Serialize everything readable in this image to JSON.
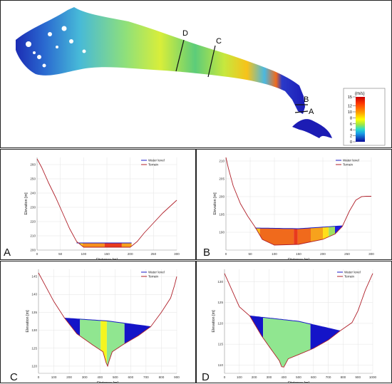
{
  "map": {
    "section_labels": [
      "D",
      "C",
      "B",
      "A"
    ],
    "colorbar": {
      "unit": "(m/s)",
      "ticks": [
        "15",
        "12",
        "10",
        "8",
        "6",
        "4",
        "2",
        "0"
      ]
    }
  },
  "chart_data": [
    {
      "type": "area",
      "panel_letter": "A",
      "xlabel": "Distance [m]",
      "ylabel": "Elevation [m]",
      "xlim": [
        0,
        300
      ],
      "ylim": [
        200,
        265
      ],
      "xticks": [
        0,
        50,
        100,
        150,
        200,
        250,
        300
      ],
      "yticks": [
        200,
        210,
        220,
        230,
        240,
        250,
        260
      ],
      "legend": [
        "Water level",
        "Terrain"
      ],
      "legend_position": "top-right",
      "water_level": 205,
      "terrain": {
        "x": [
          0,
          10,
          25,
          40,
          55,
          70,
          85,
          100,
          200,
          215,
          230,
          250,
          270,
          300
        ],
        "y": [
          264,
          258,
          247,
          237,
          226,
          215,
          206,
          202,
          202,
          206,
          212,
          219,
          226,
          235
        ]
      },
      "velocity_bands": [
        {
          "x0": 85,
          "x1": 98,
          "color": "#ffd21a"
        },
        {
          "x0": 98,
          "x1": 145,
          "color": "#f7901c"
        },
        {
          "x0": 145,
          "x1": 182,
          "color": "#e83a1c"
        },
        {
          "x0": 182,
          "x1": 203,
          "color": "#f7a21c"
        }
      ]
    },
    {
      "type": "area",
      "panel_letter": "B",
      "xlabel": "Distance [m]",
      "ylabel": "Elevation [m]",
      "xlim": [
        0,
        300
      ],
      "ylim": [
        185,
        211
      ],
      "xticks": [
        0,
        50,
        100,
        150,
        200,
        250,
        300
      ],
      "yticks": [
        190,
        195,
        200,
        205,
        210
      ],
      "legend": [
        "Water level",
        "Terrain"
      ],
      "legend_position": "top-right",
      "water_level": [
        [
          60,
          191.2
        ],
        [
          150,
          191
        ],
        [
          240,
          191.8
        ]
      ],
      "terrain": {
        "x": [
          0,
          5,
          15,
          30,
          45,
          60,
          75,
          100,
          150,
          200,
          225,
          240,
          255,
          268,
          280,
          290,
          300
        ],
        "y": [
          211,
          208,
          203,
          198,
          194.5,
          191.5,
          188,
          186.4,
          186.6,
          188,
          189.5,
          191.6,
          196,
          199,
          200,
          200.1,
          200.1
        ]
      },
      "velocity_bands": [
        {
          "x0": 60,
          "x1": 70,
          "color": "#ffc21a"
        },
        {
          "x0": 70,
          "x1": 140,
          "color": "#f06a1c"
        },
        {
          "x0": 140,
          "x1": 148,
          "color": "#e83a1c"
        },
        {
          "x0": 148,
          "x1": 175,
          "color": "#f06a1c"
        },
        {
          "x0": 175,
          "x1": 200,
          "color": "#f7a21c"
        },
        {
          "x0": 200,
          "x1": 212,
          "color": "#ffe01a"
        },
        {
          "x0": 212,
          "x1": 225,
          "color": "#9fe060"
        },
        {
          "x0": 225,
          "x1": 240,
          "color": "#1c1ce0"
        }
      ]
    },
    {
      "type": "area",
      "panel_letter": "C",
      "xlabel": "Distance [m]",
      "ylabel": "Elevation [m]",
      "xlim": [
        0,
        900
      ],
      "ylim": [
        118,
        147
      ],
      "xticks": [
        0,
        100,
        200,
        300,
        400,
        500,
        600,
        700,
        800,
        900
      ],
      "yticks": [
        120,
        125,
        130,
        135,
        140,
        145
      ],
      "legend": [
        "Water level",
        "Terrain"
      ],
      "legend_position": "top-right",
      "water_level": [
        [
          170,
          133.4
        ],
        [
          450,
          132.6
        ],
        [
          730,
          131
        ]
      ],
      "terrain": {
        "x": [
          0,
          50,
          100,
          170,
          250,
          350,
          420,
          440,
          450,
          460,
          480,
          550,
          650,
          730,
          800,
          860,
          885,
          900
        ],
        "y": [
          146,
          142,
          138,
          133.4,
          129,
          126,
          124,
          121,
          120,
          121.5,
          124,
          126,
          128.5,
          131,
          135,
          139,
          142.5,
          145
        ]
      },
      "velocity_bands": [
        {
          "x0": 170,
          "x1": 270,
          "color": "#1414c8"
        },
        {
          "x0": 270,
          "x1": 405,
          "color": "#90e690"
        },
        {
          "x0": 405,
          "x1": 445,
          "color": "#f5f51e"
        },
        {
          "x0": 445,
          "x1": 560,
          "color": "#90e690"
        },
        {
          "x0": 560,
          "x1": 730,
          "color": "#1414c8"
        }
      ]
    },
    {
      "type": "area",
      "panel_letter": "D",
      "xlabel": "Distance [m]",
      "ylabel": "Elevation [m]",
      "xlim": [
        0,
        1000
      ],
      "ylim": [
        108,
        133
      ],
      "xticks": [
        0,
        100,
        200,
        300,
        400,
        500,
        600,
        700,
        800,
        900,
        1000
      ],
      "yticks": [
        110,
        115,
        120,
        125,
        130
      ],
      "legend": [
        "Water level",
        "Terrain"
      ],
      "legend_position": "top-right",
      "water_level": [
        [
          170,
          121.8
        ],
        [
          500,
          120.5
        ],
        [
          780,
          118.2
        ]
      ],
      "terrain": {
        "x": [
          0,
          50,
          100,
          170,
          250,
          330,
          370,
          385,
          400,
          415,
          430,
          500,
          600,
          700,
          780,
          860,
          900,
          950,
          1000
        ],
        "y": [
          132,
          128,
          124,
          121.8,
          117,
          113,
          111,
          109.6,
          109.5,
          110.5,
          111.5,
          112.5,
          114,
          116,
          118.2,
          120.2,
          123,
          128,
          132
        ]
      },
      "velocity_bands": [
        {
          "x0": 170,
          "x1": 260,
          "color": "#1414c8"
        },
        {
          "x0": 260,
          "x1": 580,
          "color": "#90e690"
        },
        {
          "x0": 580,
          "x1": 780,
          "color": "#1414c8"
        }
      ]
    }
  ]
}
